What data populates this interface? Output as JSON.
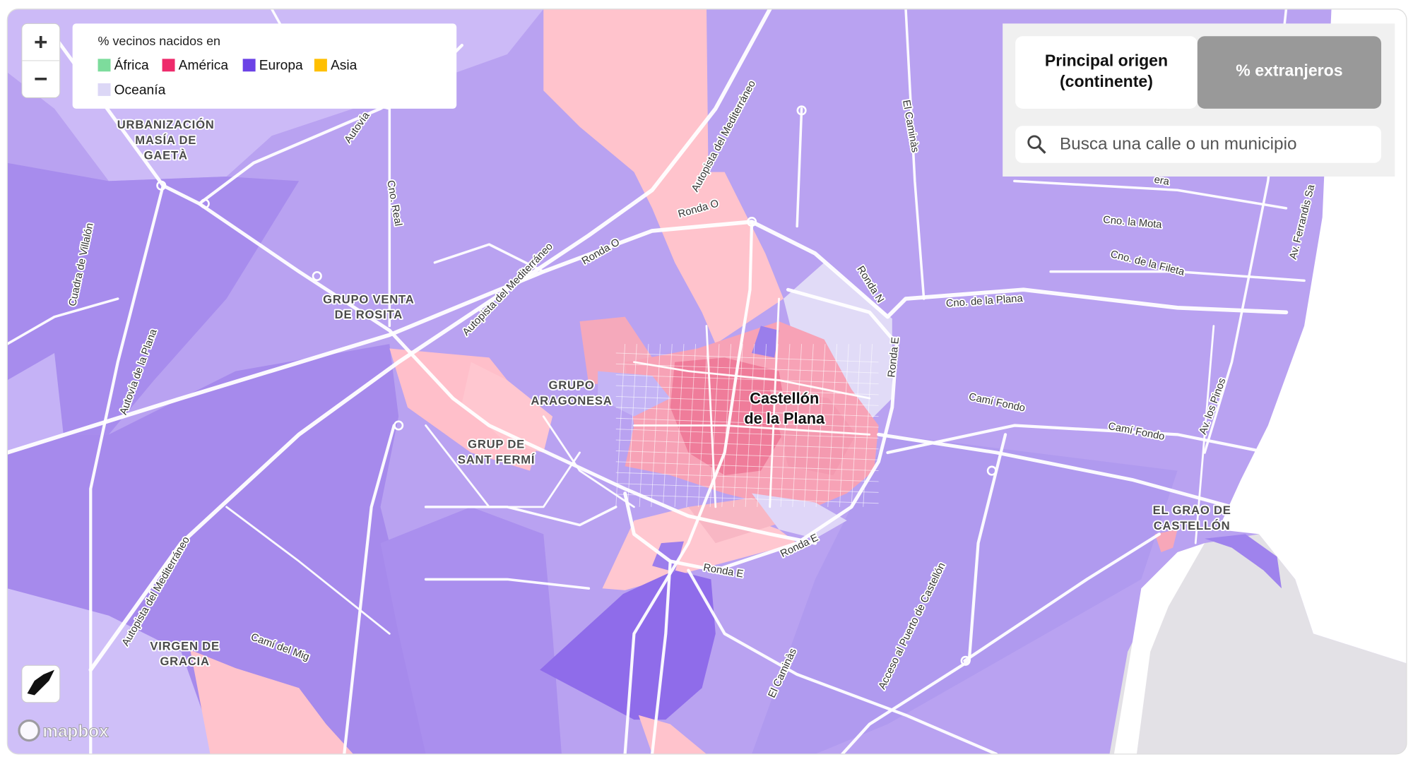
{
  "controls": {
    "zoom_in": "+",
    "zoom_out": "−"
  },
  "legend": {
    "title": "% vecinos nacidos en",
    "items": [
      {
        "name": "África",
        "color": "#7ddc9c"
      },
      {
        "name": "América",
        "color": "#ee2a6b"
      },
      {
        "name": "Europa",
        "color": "#6b42e6"
      },
      {
        "name": "Asia",
        "color": "#ffbf00"
      },
      {
        "name": "Oceanía",
        "color": "#dcd7f6"
      }
    ]
  },
  "toggle": {
    "options": [
      {
        "lines": [
          "Principal origen",
          "(continente)"
        ],
        "selected": false
      },
      {
        "lines": [
          "% extranjeros"
        ],
        "selected": true
      }
    ]
  },
  "search": {
    "placeholder": "Busca una calle o un municipio"
  },
  "places": [
    {
      "lines": [
        "URBANIZACIÓN",
        "MASÍA DE",
        "GAETÀ"
      ]
    },
    {
      "lines": [
        "GRUPO VENTA",
        "DE ROSITA"
      ]
    },
    {
      "lines": [
        "GRUPO",
        "ARAGONESA"
      ]
    },
    {
      "lines": [
        "GRUP DE",
        "SANT FERMÍ"
      ]
    },
    {
      "lines": [
        "Castellón",
        "de la Plana"
      ]
    },
    {
      "lines": [
        "EL GRAO DE",
        "CASTELLÓN"
      ]
    },
    {
      "lines": [
        "VIRGEN DE",
        "GRACIA"
      ]
    }
  ],
  "roads": [
    "Autovía",
    "Cno. Real",
    "Autopista del Mediterráneo",
    "El Caminàs",
    "Ronda O",
    "Ronda O",
    "Autopista del Mediterráneo",
    "Cuadra de Villalón",
    "Autovía de la Plana",
    "Ronda N",
    "Cno. la Mota",
    "Cno. de la Fileta",
    "Cno. de la Plana",
    "Ronda E",
    "Av. Ferrandis Sa",
    "Camí Fondo",
    "Camí Fondo",
    "Av. los Pinos",
    "Ronda E",
    "Ronda E",
    "Acceso al Puerto de Castellón",
    "El Caminàs",
    "Autopista del Mediterráneo",
    "Camí del Mig",
    "era"
  ],
  "attribution": "mapbox"
}
